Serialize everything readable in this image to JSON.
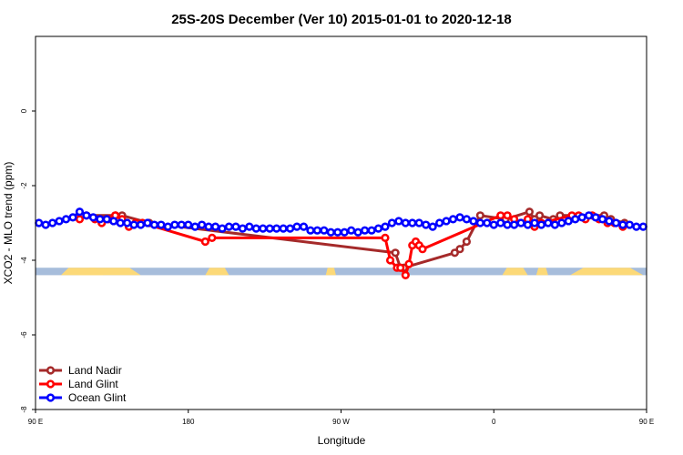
{
  "chart_data": {
    "type": "line",
    "title": "25S-20S December (Ver 10)   2015-01-01 to 2020-12-18",
    "xlabel": "Longitude",
    "ylabel": "XCO2 - MLO trend (ppm)",
    "xlim": [
      90,
      450
    ],
    "ylim": [
      -8,
      2
    ],
    "x_ticks": [
      {
        "value": 90,
        "label": "90 E"
      },
      {
        "value": 180,
        "label": "180"
      },
      {
        "value": 270,
        "label": "90 W"
      },
      {
        "value": 360,
        "label": "0"
      },
      {
        "value": 450,
        "label": "90 E"
      }
    ],
    "y_ticks": [
      {
        "value": -8,
        "label": "-8"
      },
      {
        "value": -6,
        "label": "-6"
      },
      {
        "value": -4,
        "label": "-4"
      },
      {
        "value": -2,
        "label": "-2"
      },
      {
        "value": 0,
        "label": "0"
      }
    ],
    "grid": false,
    "legend_position": "bottom-left",
    "land_band": {
      "y_range": [
        -4.4,
        -4.2
      ],
      "ocean_color": "#a7bddb",
      "land_color": "#fcd978",
      "land_segments": [
        [
          115,
          152
        ],
        [
          105,
          130
        ],
        [
          190,
          204
        ],
        [
          261,
          267
        ],
        [
          365,
          380
        ],
        [
          385,
          392
        ],
        [
          405,
          448
        ]
      ]
    },
    "series": [
      {
        "name": "Land Nadir",
        "color": "#a52a2a",
        "x": [
          117,
          137,
          141,
          157,
          302,
          305,
          307,
          337,
          340,
          344,
          352,
          367,
          381,
          384,
          387,
          395,
          399,
          425,
          429,
          437
        ],
        "y": [
          -2.8,
          -2.8,
          -2.8,
          -3.0,
          -3.8,
          -4.2,
          -4.2,
          -3.8,
          -3.7,
          -3.5,
          -2.8,
          -2.9,
          -2.7,
          -2.9,
          -2.8,
          -2.9,
          -2.8,
          -2.8,
          -2.9,
          -3.0
        ]
      },
      {
        "name": "Land Glint",
        "color": "#ff0000",
        "x": [
          116,
          120,
          125,
          129,
          133,
          137,
          141,
          145,
          149,
          153,
          190,
          194,
          296,
          299,
          303,
          305,
          308,
          310,
          312,
          314,
          316,
          318,
          364,
          368,
          372,
          376,
          380,
          384,
          388,
          406,
          410,
          414,
          418,
          422,
          427,
          431,
          436
        ],
        "y": [
          -2.9,
          -2.8,
          -2.9,
          -3.0,
          -2.9,
          -2.8,
          -2.9,
          -3.1,
          -3.0,
          -3.0,
          -3.5,
          -3.4,
          -3.4,
          -4.0,
          -4.2,
          -4.2,
          -4.4,
          -4.1,
          -3.6,
          -3.5,
          -3.6,
          -3.7,
          -2.8,
          -2.8,
          -2.9,
          -3.0,
          -2.9,
          -3.1,
          -3.0,
          -2.8,
          -2.8,
          -2.9,
          -2.8,
          -2.9,
          -3.0,
          -3.0,
          -3.1
        ]
      },
      {
        "name": "Ocean Glint",
        "color": "#0000ff",
        "x": [
          92,
          96,
          100,
          104,
          108,
          112,
          116,
          120,
          124,
          128,
          132,
          136,
          140,
          144,
          148,
          152,
          156,
          160,
          164,
          168,
          172,
          176,
          180,
          184,
          188,
          192,
          196,
          200,
          204,
          208,
          212,
          216,
          220,
          224,
          228,
          232,
          236,
          240,
          244,
          248,
          252,
          256,
          260,
          264,
          268,
          272,
          276,
          280,
          284,
          288,
          292,
          296,
          300,
          304,
          308,
          312,
          316,
          320,
          324,
          328,
          332,
          336,
          340,
          344,
          348,
          352,
          356,
          360,
          364,
          368,
          372,
          376,
          380,
          384,
          388,
          392,
          396,
          400,
          404,
          408,
          412,
          416,
          420,
          424,
          428,
          432,
          436,
          440,
          444,
          448
        ],
        "y": [
          -3.0,
          -3.05,
          -3.0,
          -2.95,
          -2.9,
          -2.85,
          -2.7,
          -2.8,
          -2.85,
          -2.9,
          -2.9,
          -2.95,
          -3.0,
          -3.0,
          -3.05,
          -3.05,
          -3.0,
          -3.05,
          -3.05,
          -3.1,
          -3.05,
          -3.05,
          -3.05,
          -3.1,
          -3.05,
          -3.1,
          -3.1,
          -3.15,
          -3.1,
          -3.1,
          -3.15,
          -3.1,
          -3.15,
          -3.15,
          -3.15,
          -3.15,
          -3.15,
          -3.15,
          -3.1,
          -3.1,
          -3.2,
          -3.2,
          -3.2,
          -3.25,
          -3.25,
          -3.25,
          -3.2,
          -3.25,
          -3.2,
          -3.2,
          -3.15,
          -3.1,
          -3.0,
          -2.95,
          -3.0,
          -3.0,
          -3.0,
          -3.05,
          -3.1,
          -3.0,
          -2.95,
          -2.9,
          -2.85,
          -2.9,
          -2.95,
          -3.0,
          -3.0,
          -3.05,
          -3.0,
          -3.05,
          -3.05,
          -3.0,
          -3.05,
          -3.0,
          -3.05,
          -3.0,
          -3.05,
          -3.0,
          -2.95,
          -2.9,
          -2.85,
          -2.8,
          -2.85,
          -2.9,
          -2.95,
          -3.0,
          -3.05,
          -3.05,
          -3.1,
          -3.1
        ]
      }
    ]
  }
}
